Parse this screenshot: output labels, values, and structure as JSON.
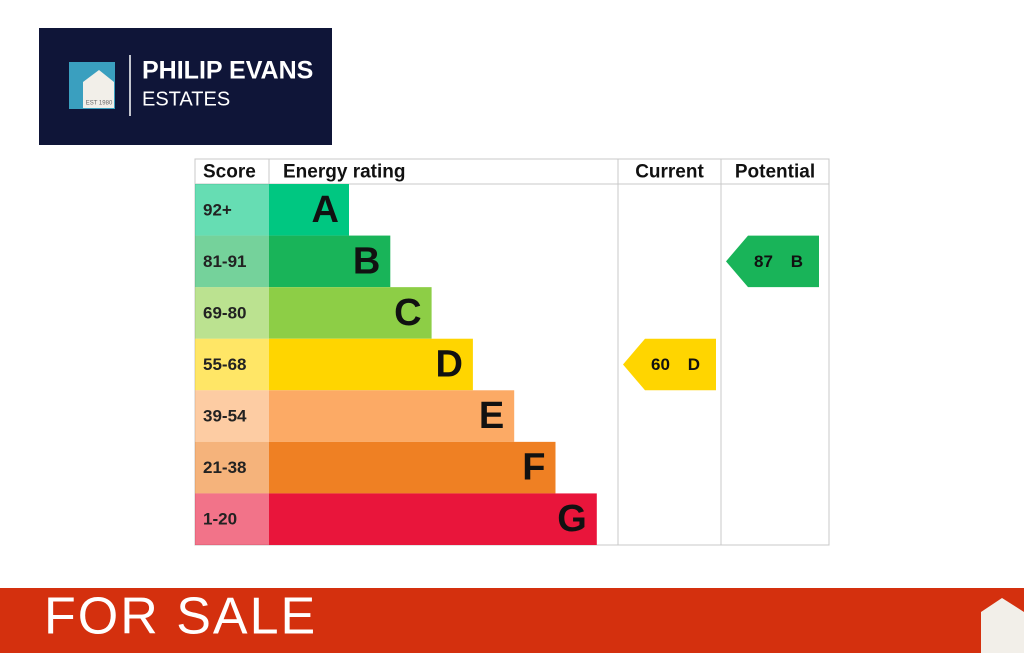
{
  "logo": {
    "name": "PHILIP EVANS",
    "subtitle": "ESTATES",
    "established": "EST 1980"
  },
  "epc": {
    "headers": [
      "Score",
      "Energy rating",
      "Current",
      "Potential"
    ],
    "bands": [
      {
        "score": "92+",
        "letter": "A",
        "color": "#00c781"
      },
      {
        "score": "81-91",
        "letter": "B",
        "color": "#19b459"
      },
      {
        "score": "69-80",
        "letter": "C",
        "color": "#8dce46"
      },
      {
        "score": "55-68",
        "letter": "D",
        "color": "#ffd500"
      },
      {
        "score": "39-54",
        "letter": "E",
        "color": "#fcaa65"
      },
      {
        "score": "21-38",
        "letter": "F",
        "color": "#ef8023"
      },
      {
        "score": "1-20",
        "letter": "G",
        "color": "#e9153b"
      }
    ],
    "current": {
      "value": 60,
      "letter": "D"
    },
    "potential": {
      "value": 87,
      "letter": "B"
    }
  },
  "banner": {
    "text": "FOR SALE"
  }
}
